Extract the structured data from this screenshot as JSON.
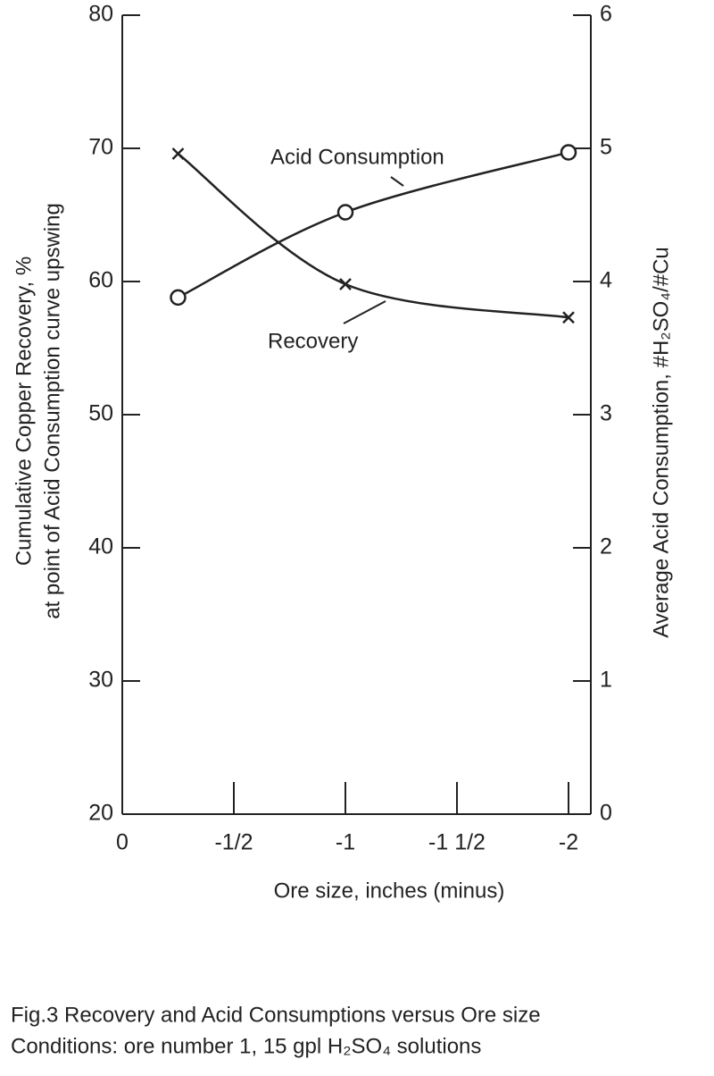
{
  "chart_data": {
    "type": "line",
    "x_label": "Ore size, inches (minus)",
    "y_label": [
      "Cumulative Copper Recovery, %",
      "at point of Acid Consumption curve upswing"
    ],
    "y2_label": "Average Acid Consumption, #H₂SO₄/#Cu",
    "caption": [
      "Fig.3 Recovery and Acid Consumptions versus Ore size",
      "Conditions: ore number 1, 15 gpl H₂SO₄ solutions"
    ],
    "xlim": [
      0,
      -2.1
    ],
    "xticks": [
      0,
      {
        "value": -0.5,
        "label": "-1/2"
      },
      -1,
      {
        "value": -1.5,
        "label": "-1 1/2"
      },
      -2
    ],
    "ylim": [
      20,
      80
    ],
    "yticks": [
      20,
      30,
      40,
      50,
      60,
      70,
      80
    ],
    "y2lim": [
      0,
      6
    ],
    "y2ticks": [
      0,
      1,
      2,
      3,
      4,
      5,
      6
    ],
    "series": [
      {
        "name": "Recovery",
        "color": "#222222",
        "marker": "x",
        "x": [
          -0.25,
          -1,
          -2
        ],
        "values": [
          69.6,
          59.8,
          57.3
        ]
      },
      {
        "name": "Acid Consumption",
        "color": "#222222",
        "marker": "o",
        "axis": "y2",
        "x": [
          -0.25,
          -1,
          -2
        ],
        "values": [
          3.88,
          4.52,
          4.97
        ]
      }
    ]
  }
}
